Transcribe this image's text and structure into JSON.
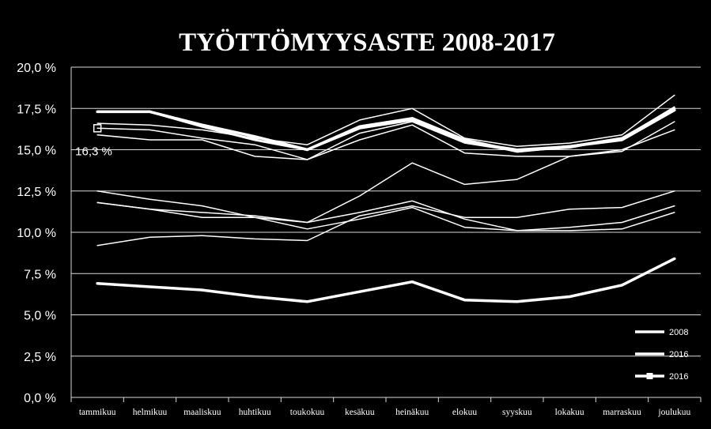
{
  "chart_data": {
    "type": "line",
    "title": "TYÖTTÖMYYSASTE 2008-2017",
    "categories": [
      "tammikuu",
      "helmikuu",
      "maaliskuu",
      "huhtikuu",
      "toukokuu",
      "kesäkuu",
      "heinäkuu",
      "elokuu",
      "syyskuu",
      "lokakuu",
      "marraskuu",
      "joulukuu"
    ],
    "y_ticks": [
      "0,0 %",
      "2,5 %",
      "5,0 %",
      "7,5 %",
      "10,0 %",
      "12,5 %",
      "15,0 %",
      "17,5 %",
      "20,0 %"
    ],
    "ylim": [
      0,
      20
    ],
    "grid": true,
    "legend_position": "bottom-right",
    "legend": [
      "2008",
      "2016",
      "2016"
    ],
    "annotation": {
      "text": "16,3 %",
      "category": "tammikuu",
      "value": 16.3
    },
    "series": [
      {
        "name": "2008",
        "values": [
          6.9,
          6.7,
          6.5,
          6.1,
          5.8,
          6.4,
          7.0,
          5.9,
          5.8,
          6.1,
          6.8,
          8.4
        ],
        "width": 3.5,
        "color": "#ffffff"
      },
      {
        "values": [
          9.2,
          9.7,
          9.8,
          9.6,
          9.5,
          11.0,
          11.6,
          10.9,
          10.9,
          11.4,
          11.5,
          12.5
        ],
        "width": 1.5,
        "color": "#ffffff"
      },
      {
        "values": [
          11.8,
          11.4,
          10.9,
          10.9,
          10.2,
          10.8,
          11.5,
          10.3,
          10.1,
          10.1,
          10.2,
          11.2
        ],
        "width": 1.5,
        "color": "#ffffff"
      },
      {
        "values": [
          11.8,
          11.4,
          11.2,
          11.0,
          10.6,
          11.2,
          11.9,
          10.8,
          10.1,
          10.3,
          10.6,
          11.6
        ],
        "width": 1.5,
        "color": "#ffffff"
      },
      {
        "values": [
          12.5,
          12.0,
          11.6,
          10.9,
          10.6,
          12.2,
          14.2,
          12.9,
          13.2,
          14.6,
          15.0,
          16.2
        ],
        "width": 1.5,
        "color": "#ffffff"
      },
      {
        "values": [
          15.9,
          15.6,
          15.6,
          14.6,
          14.4,
          15.6,
          16.5,
          14.8,
          14.6,
          14.6,
          14.9,
          16.7
        ],
        "width": 1.5,
        "color": "#ffffff"
      },
      {
        "values": [
          16.6,
          16.5,
          16.2,
          15.7,
          15.3,
          16.8,
          17.5,
          15.7,
          15.2,
          15.4,
          15.9,
          18.3
        ],
        "width": 1.5,
        "color": "#ffffff"
      },
      {
        "values": [
          16.3,
          16.2,
          15.7,
          15.3,
          14.4,
          16.0,
          16.7,
          15.4,
          14.9,
          15.1,
          15.7,
          17.6
        ],
        "width": 1.5,
        "color": "#ffffff"
      },
      {
        "name": "2016",
        "values": [
          17.3,
          17.3,
          16.5,
          15.8,
          15.0,
          16.4,
          16.9,
          15.6,
          14.9,
          15.2,
          15.6,
          17.4
        ],
        "width": 3.5,
        "color": "#ffffff"
      },
      {
        "name": "2016",
        "values": [
          17.3,
          17.3,
          16.4,
          15.6,
          15.0,
          16.3,
          16.8,
          15.5,
          15.0,
          15.2,
          15.7,
          17.5
        ],
        "width": 3.0,
        "color": "#ffffff"
      }
    ]
  }
}
